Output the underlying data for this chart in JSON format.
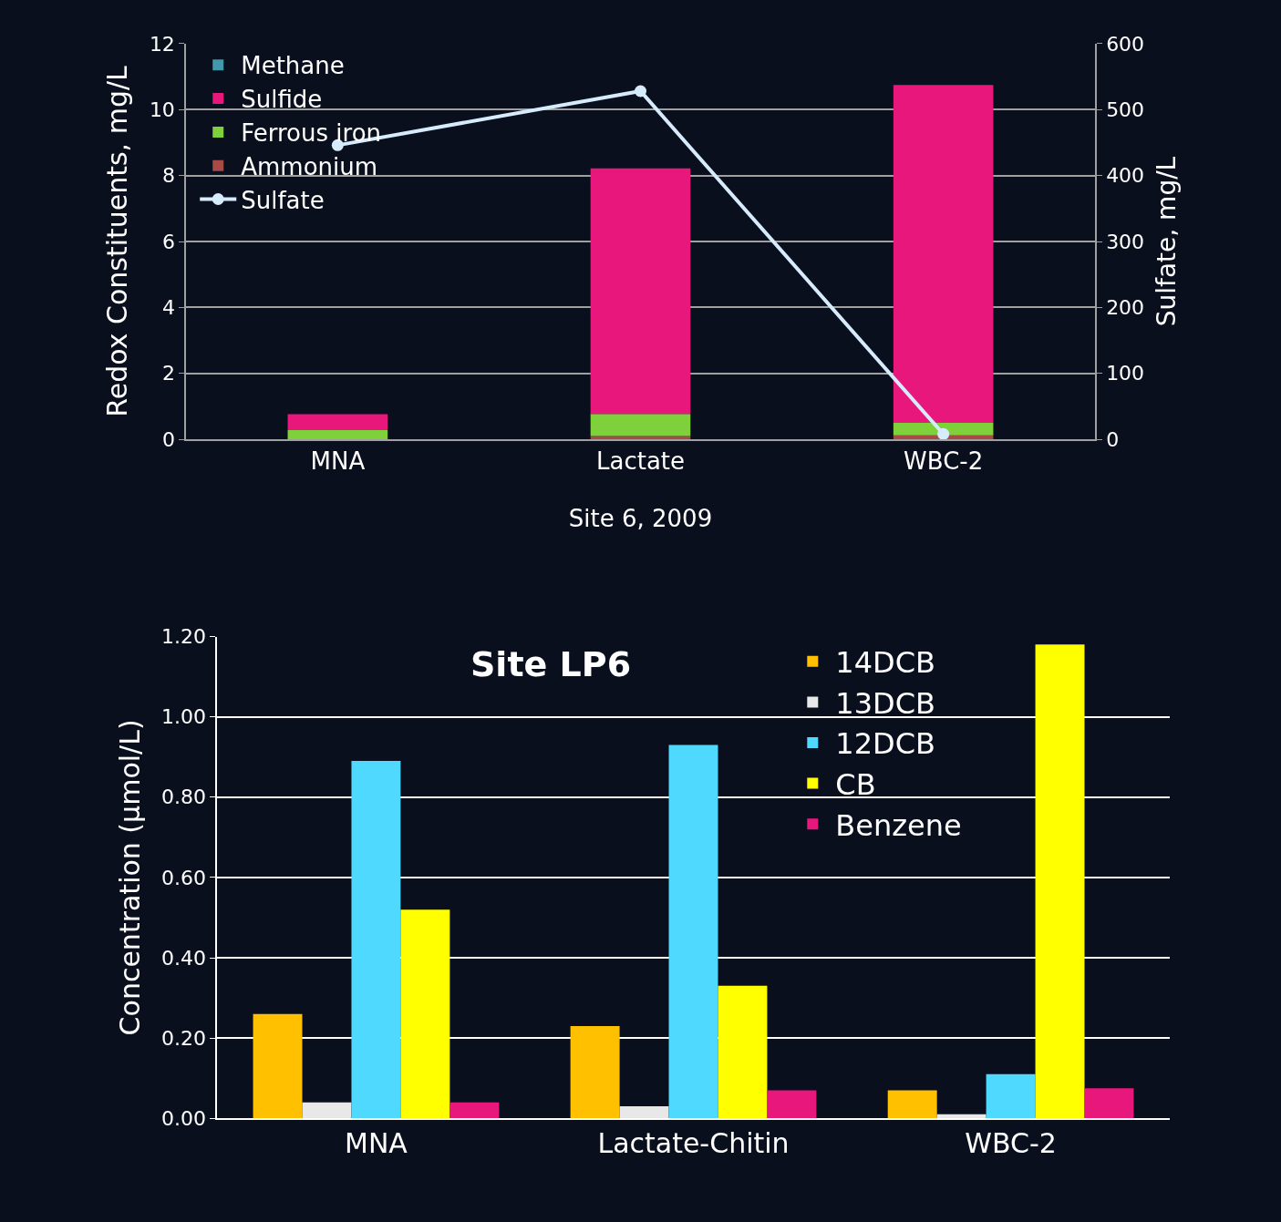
{
  "chart_data": [
    {
      "type": "bar",
      "stacked": true,
      "xlabel": "Site 6, 2009",
      "ylabel": "Redox Constituents, mg/L",
      "y2label": "Sulfate, mg/L",
      "categories": [
        "MNA",
        "Lactate",
        "WBC-2"
      ],
      "series": [
        {
          "name": "Ammonium",
          "color": "#a84a45",
          "values": [
            null,
            0.1,
            0.12
          ]
        },
        {
          "name": "Ferrous iron",
          "color": "#7fd13b",
          "values": [
            0.28,
            0.67,
            0.38
          ]
        },
        {
          "name": "Sulfide",
          "color": "#e8177b",
          "values": [
            0.48,
            7.45,
            10.25
          ]
        },
        {
          "name": "Methane",
          "color": "#4198af",
          "values": [
            0,
            0,
            0
          ]
        },
        {
          "name": "Sulfate",
          "type": "line",
          "axis": "y2",
          "color": "#d6ebfb",
          "values": [
            446,
            528,
            8
          ]
        }
      ],
      "marker": "circle",
      "ylim": [
        0,
        12
      ],
      "yticks": [
        0,
        2,
        4,
        6,
        8,
        10,
        12
      ],
      "y2lim": [
        0,
        600
      ],
      "y2ticks": [
        0,
        100,
        200,
        300,
        400,
        500,
        600
      ],
      "grid": "y",
      "legend": "top left"
    },
    {
      "type": "bar",
      "title": "Site LP6",
      "ylabel": "Concentration (µmol/L)",
      "categories": [
        "MNA",
        "Lactate-Chitin",
        "WBC-2"
      ],
      "series": [
        {
          "name": "14DCB",
          "color": "#ffc000",
          "values": [
            0.26,
            0.23,
            0.07
          ]
        },
        {
          "name": "13DCB",
          "color": "#e8e8e8",
          "values": [
            0.04,
            0.03,
            0.01
          ]
        },
        {
          "name": "12DCB",
          "color": "#4fd9ff",
          "values": [
            0.89,
            0.93,
            0.11
          ]
        },
        {
          "name": "CB",
          "color": "#ffff00",
          "values": [
            0.52,
            0.33,
            1.18
          ]
        },
        {
          "name": "Benzene",
          "color": "#e8177b",
          "values": [
            0.04,
            0.07,
            0.075
          ]
        }
      ],
      "ylim": [
        0,
        1.2
      ],
      "yticks": [
        {
          "value": 0,
          "label": "0.00"
        },
        {
          "value": 0.2,
          "label": "0.20"
        },
        {
          "value": 0.4,
          "label": "0.40"
        },
        {
          "value": 0.6,
          "label": "0.60"
        },
        {
          "value": 0.8,
          "label": "0.80"
        },
        {
          "value": 1.0,
          "label": "1.00"
        },
        {
          "value": 1.2,
          "label": "1.20"
        }
      ],
      "grid": "y",
      "legend": "top right"
    }
  ]
}
